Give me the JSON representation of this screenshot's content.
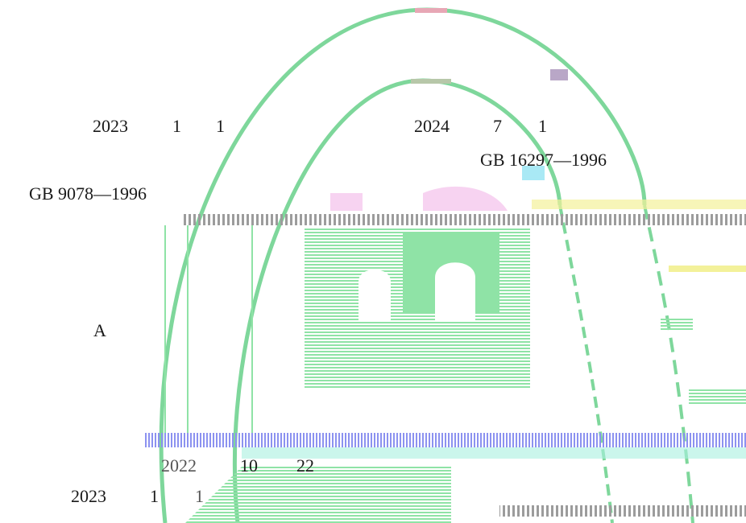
{
  "texts": {
    "t1_year": "2023",
    "t1_m": "1",
    "t1_d": "1",
    "t2_year": "2024",
    "t2_m": "7",
    "t2_d": "1",
    "std_1": "GB 16297—1996",
    "std_2": "GB  9078—1996",
    "letter": "A",
    "t3_year": "2022",
    "t3_m": "10",
    "t3_d": "22",
    "t4_year": "2023",
    "t4_m": "1",
    "t4_d": "1"
  },
  "colors": {
    "arc": "#7ed79b",
    "fill": "#8fe3a6",
    "pink": "#f5c8ee",
    "blue": "#8c92f0",
    "grey_band": "#a7a7a7",
    "yellow": "#f3f19a"
  }
}
